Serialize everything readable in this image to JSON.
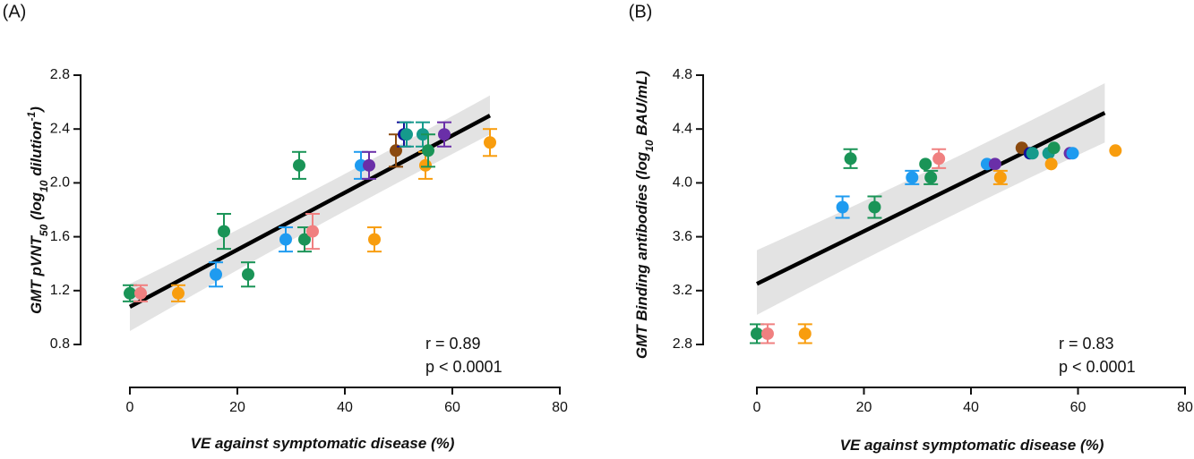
{
  "chart_data": [
    {
      "panel_label": "(A)",
      "type": "scatter",
      "xlabel": "VE against symptomatic disease (%)",
      "ylabel": {
        "parts": [
          {
            "text": "GMT pVNT",
            "role": "normal"
          },
          {
            "text": "50",
            "role": "sub"
          },
          {
            "text": " (log",
            "role": "normal"
          },
          {
            "text": "10",
            "role": "sub"
          },
          {
            "text": " dilution",
            "role": "normal"
          },
          {
            "text": "-1",
            "role": "sup"
          },
          {
            "text": ")",
            "role": "normal"
          }
        ]
      },
      "xlim": [
        0,
        80
      ],
      "ylim": [
        0.8,
        2.8
      ],
      "xticks": [
        "0",
        "20",
        "40",
        "60",
        "80"
      ],
      "xtick_values": [
        0,
        20,
        40,
        60,
        80
      ],
      "yticks": [
        "0.8",
        "1.2",
        "1.6",
        "2.0",
        "2.4",
        "2.8"
      ],
      "ytick_values": [
        0.8,
        1.2,
        1.6,
        2.0,
        2.4,
        2.8
      ],
      "stats": {
        "r": "r = 0.89",
        "p": "p < 0.0001"
      },
      "fit": {
        "x": [
          0,
          67
        ],
        "y": [
          1.08,
          2.5
        ],
        "ci_lower": [
          0.9,
          2.36
        ],
        "ci_upper": [
          1.25,
          2.65
        ]
      },
      "points": [
        {
          "x": 0,
          "y": 1.18,
          "err": 0.06,
          "color": "#1a9457"
        },
        {
          "x": 2,
          "y": 1.18,
          "err": 0.06,
          "color": "#f08080"
        },
        {
          "x": 9,
          "y": 1.18,
          "err": 0.06,
          "color": "#f89d0e"
        },
        {
          "x": 16,
          "y": 1.32,
          "err": 0.09,
          "color": "#1e9bf0"
        },
        {
          "x": 17.5,
          "y": 1.64,
          "err": 0.13,
          "color": "#1a9457"
        },
        {
          "x": 22,
          "y": 1.32,
          "err": 0.09,
          "color": "#1a9457"
        },
        {
          "x": 29,
          "y": 1.58,
          "err": 0.09,
          "color": "#1e9bf0"
        },
        {
          "x": 31.5,
          "y": 2.13,
          "err": 0.1,
          "color": "#1a9457"
        },
        {
          "x": 32.5,
          "y": 1.58,
          "err": 0.09,
          "color": "#1a9457"
        },
        {
          "x": 34,
          "y": 1.64,
          "err": 0.13,
          "color": "#f08080"
        },
        {
          "x": 43,
          "y": 2.13,
          "err": 0.1,
          "color": "#1e9bf0"
        },
        {
          "x": 44.5,
          "y": 2.13,
          "err": 0.1,
          "color": "#6a2fa8"
        },
        {
          "x": 45.5,
          "y": 1.58,
          "err": 0.09,
          "color": "#f89d0e"
        },
        {
          "x": 49.5,
          "y": 2.24,
          "err": 0.12,
          "color": "#8b4a0f"
        },
        {
          "x": 51,
          "y": 2.36,
          "err": 0.09,
          "color": "#14129a"
        },
        {
          "x": 51.5,
          "y": 2.36,
          "err": 0.09,
          "color": "#159a8c"
        },
        {
          "x": 54.5,
          "y": 2.36,
          "err": 0.09,
          "color": "#159a8c"
        },
        {
          "x": 55,
          "y": 2.13,
          "err": 0.1,
          "color": "#f89d0e"
        },
        {
          "x": 55.5,
          "y": 2.24,
          "err": 0.12,
          "color": "#1a9457"
        },
        {
          "x": 58.5,
          "y": 2.36,
          "err": 0.09,
          "color": "#6a2fa8"
        },
        {
          "x": 67,
          "y": 2.3,
          "err": 0.1,
          "color": "#f89d0e"
        }
      ]
    },
    {
      "panel_label": "(B)",
      "type": "scatter",
      "xlabel": "VE against symptomatic disease (%)",
      "ylabel": {
        "parts": [
          {
            "text": "GMT Binding antibodies (log",
            "role": "normal"
          },
          {
            "text": "10",
            "role": "sub"
          },
          {
            "text": " BAU/mL)",
            "role": "normal"
          }
        ]
      },
      "xlim": [
        0,
        80
      ],
      "ylim": [
        2.8,
        4.8
      ],
      "xticks": [
        "0",
        "20",
        "40",
        "60",
        "80"
      ],
      "xtick_values": [
        0,
        20,
        40,
        60,
        80
      ],
      "yticks": [
        "2.8",
        "3.2",
        "3.6",
        "4.0",
        "4.4",
        "4.8"
      ],
      "ytick_values": [
        2.8,
        3.2,
        3.6,
        4.0,
        4.4,
        4.8
      ],
      "stats": {
        "r": "r = 0.83",
        "p": "p < 0.0001"
      },
      "fit": {
        "x": [
          0,
          65
        ],
        "y": [
          3.25,
          4.52
        ],
        "ci_lower": [
          3.02,
          4.3
        ],
        "ci_upper": [
          3.5,
          4.74
        ]
      },
      "points": [
        {
          "x": 0,
          "y": 2.88,
          "err": 0.07,
          "color": "#1a9457"
        },
        {
          "x": 2,
          "y": 2.88,
          "err": 0.07,
          "color": "#f08080"
        },
        {
          "x": 9,
          "y": 2.88,
          "err": 0.07,
          "color": "#f89d0e"
        },
        {
          "x": 16,
          "y": 3.82,
          "err": 0.08,
          "color": "#1e9bf0"
        },
        {
          "x": 17.5,
          "y": 4.18,
          "err": 0.07,
          "color": "#1a9457"
        },
        {
          "x": 22,
          "y": 3.82,
          "err": 0.08,
          "color": "#1a9457"
        },
        {
          "x": 29,
          "y": 4.04,
          "err": 0.05,
          "color": "#1e9bf0"
        },
        {
          "x": 31.5,
          "y": 4.14,
          "err": 0.0,
          "color": "#1a9457"
        },
        {
          "x": 32.5,
          "y": 4.04,
          "err": 0.05,
          "color": "#1a9457"
        },
        {
          "x": 34,
          "y": 4.18,
          "err": 0.07,
          "color": "#f08080"
        },
        {
          "x": 43,
          "y": 4.14,
          "err": 0.0,
          "color": "#1e9bf0"
        },
        {
          "x": 44.5,
          "y": 4.14,
          "err": 0.0,
          "color": "#6a2fa8"
        },
        {
          "x": 45.5,
          "y": 4.04,
          "err": 0.05,
          "color": "#f89d0e"
        },
        {
          "x": 49.5,
          "y": 4.26,
          "err": 0.0,
          "color": "#8b4a0f"
        },
        {
          "x": 51,
          "y": 4.22,
          "err": 0.0,
          "color": "#14129a"
        },
        {
          "x": 51.5,
          "y": 4.22,
          "err": 0.0,
          "color": "#159a8c"
        },
        {
          "x": 54.5,
          "y": 4.22,
          "err": 0.0,
          "color": "#159a8c"
        },
        {
          "x": 55,
          "y": 4.14,
          "err": 0.0,
          "color": "#f89d0e"
        },
        {
          "x": 55.5,
          "y": 4.26,
          "err": 0.0,
          "color": "#1a9457"
        },
        {
          "x": 58.5,
          "y": 4.22,
          "err": 0.0,
          "color": "#6a2fa8"
        },
        {
          "x": 59,
          "y": 4.22,
          "err": 0.0,
          "color": "#1e9bf0"
        },
        {
          "x": 67,
          "y": 4.24,
          "err": 0.0,
          "color": "#f89d0e"
        }
      ]
    }
  ]
}
